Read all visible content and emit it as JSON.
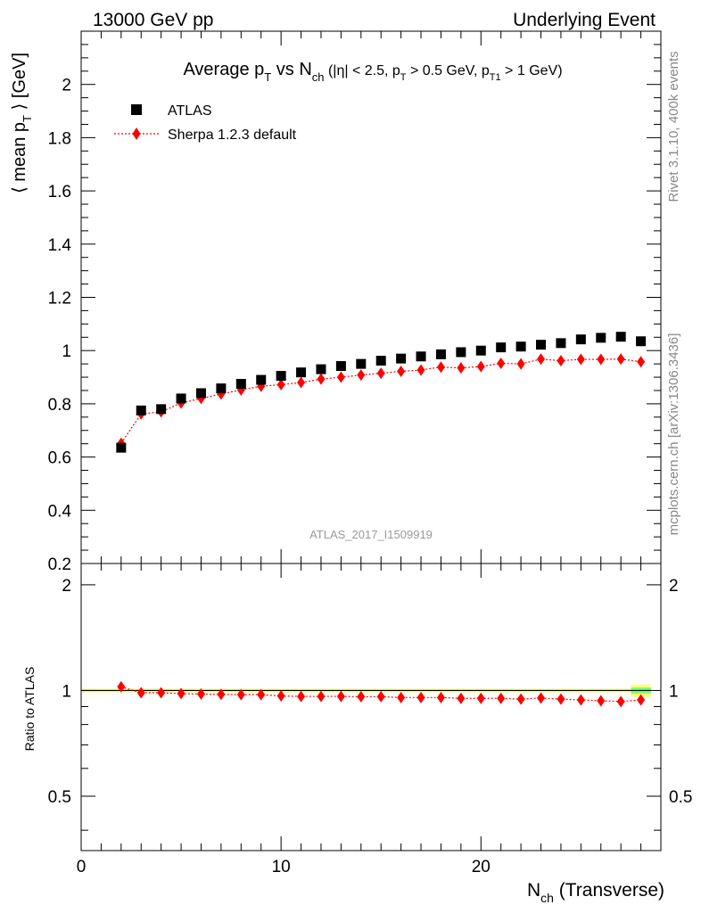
{
  "header": {
    "left": "13000 GeV pp",
    "right": "Underlying Event"
  },
  "side_labels": {
    "rivet": "Rivet 3.1.10,  400k events",
    "mcplots": "mcplots.cern.ch [arXiv:1306.3436]"
  },
  "watermark": "ATLAS_2017_I1509919",
  "title": {
    "p1": "Average p",
    "p1_sub": "T",
    "p2": " vs N",
    "p2_sub": "ch",
    "p3": " (|η| < 2.5, p",
    "p3_sub": "T",
    "p4": " > 0.5 GeV, p",
    "p4_sub": "T1",
    "p5": " > 1 GeV)"
  },
  "ylabel": {
    "a": "⟨ mean p",
    "a_sub": "T",
    "b": " ⟩ [GeV]"
  },
  "ratio_ylabel": "Ratio to ATLAS",
  "xlabel": {
    "a": "N",
    "a_sub": "ch",
    "b": " (Transverse)"
  },
  "colors": {
    "data": "#000000",
    "mc": "#ff0000",
    "band_inner": "#77ff77",
    "band_outer": "#ffff77"
  },
  "chart_data": {
    "type": "scatter",
    "xlim": [
      0,
      29
    ],
    "ylim": [
      0.2,
      2.2
    ],
    "ratio_ylim": [
      0.35,
      2.3
    ],
    "x_ticks": [
      0,
      10,
      20
    ],
    "y_ticks": [
      0.2,
      0.4,
      0.6,
      0.8,
      1,
      1.2,
      1.4,
      1.6,
      1.8,
      2
    ],
    "ratio_ticks": [
      0.5,
      1,
      2
    ],
    "legend_position": "top-left",
    "x": [
      2,
      3,
      4,
      5,
      6,
      7,
      8,
      9,
      10,
      11,
      12,
      13,
      14,
      15,
      16,
      17,
      18,
      19,
      20,
      21,
      22,
      23,
      24,
      25,
      26,
      27,
      28
    ],
    "series": [
      {
        "name": "ATLAS",
        "marker": "square",
        "values": [
          0.635,
          0.775,
          0.78,
          0.82,
          0.84,
          0.858,
          0.875,
          0.89,
          0.905,
          0.918,
          0.93,
          0.942,
          0.95,
          0.962,
          0.97,
          0.978,
          0.986,
          0.994,
          1.0,
          1.012,
          1.015,
          1.022,
          1.028,
          1.042,
          1.048,
          1.052,
          1.035
        ]
      },
      {
        "name": "Sherpa 1.2.3 default",
        "marker": "diamond",
        "values": [
          0.652,
          0.762,
          0.77,
          0.803,
          0.82,
          0.837,
          0.852,
          0.866,
          0.872,
          0.88,
          0.893,
          0.9,
          0.908,
          0.915,
          0.922,
          0.927,
          0.938,
          0.935,
          0.94,
          0.952,
          0.95,
          0.968,
          0.962,
          0.967,
          0.967,
          0.968,
          0.958
        ]
      }
    ],
    "ratio": [
      1.025,
      0.985,
      0.985,
      0.98,
      0.977,
      0.975,
      0.973,
      0.973,
      0.965,
      0.962,
      0.962,
      0.962,
      0.96,
      0.96,
      0.955,
      0.955,
      0.955,
      0.95,
      0.95,
      0.95,
      0.945,
      0.952,
      0.945,
      0.94,
      0.935,
      0.93,
      0.94
    ]
  }
}
